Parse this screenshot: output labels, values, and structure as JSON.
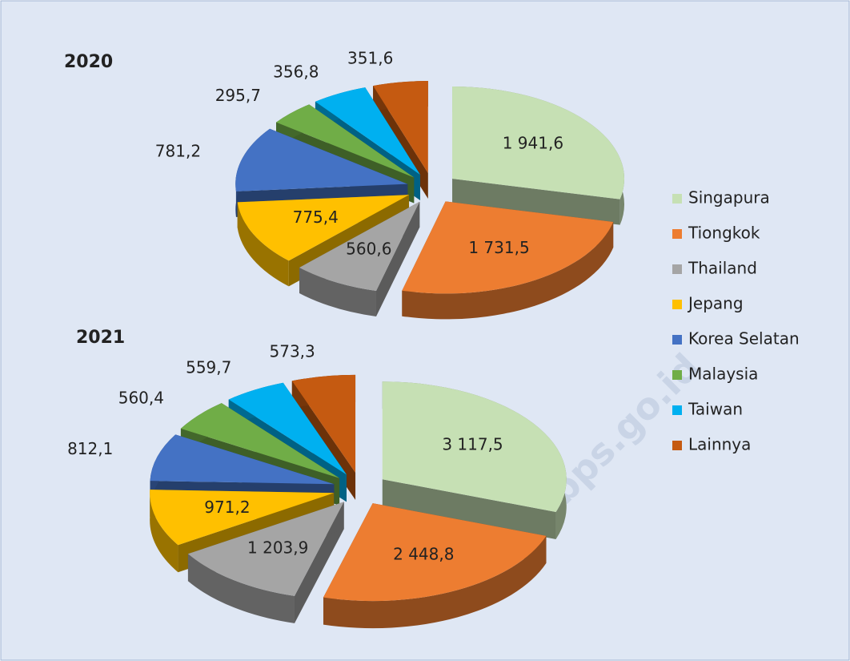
{
  "chart_data": [
    {
      "type": "pie",
      "title": "2020",
      "values": [
        1941.6,
        1731.5,
        560.6,
        775.4,
        781.2,
        295.7,
        356.8,
        351.6
      ],
      "value_labels": [
        "1 941,6",
        "1 731,5",
        "560,6",
        "775,4",
        "781,2",
        "295,7",
        "356,8",
        "351,6"
      ]
    },
    {
      "type": "pie",
      "title": "2021",
      "values": [
        3117.5,
        2448.8,
        1203.9,
        971.2,
        812.1,
        560.4,
        559.7,
        573.3
      ],
      "value_labels": [
        "3 117,5",
        "2 448,8",
        "1 203,9",
        "971,2",
        "812,1",
        "560,4",
        "559,7",
        "573,3"
      ]
    }
  ],
  "legend": {
    "categories": [
      "Singapura",
      "Tiongkok",
      "Thailand",
      "Jepang",
      "Korea Selatan",
      "Malaysia",
      "Taiwan",
      "Lainnya"
    ],
    "colors": [
      "#c6e0b4",
      "#ed7d31",
      "#a5a5a5",
      "#ffc000",
      "#4472c4",
      "#70ad47",
      "#00b0f0",
      "#c55a11"
    ]
  },
  "watermark": "www.bps.go.id"
}
